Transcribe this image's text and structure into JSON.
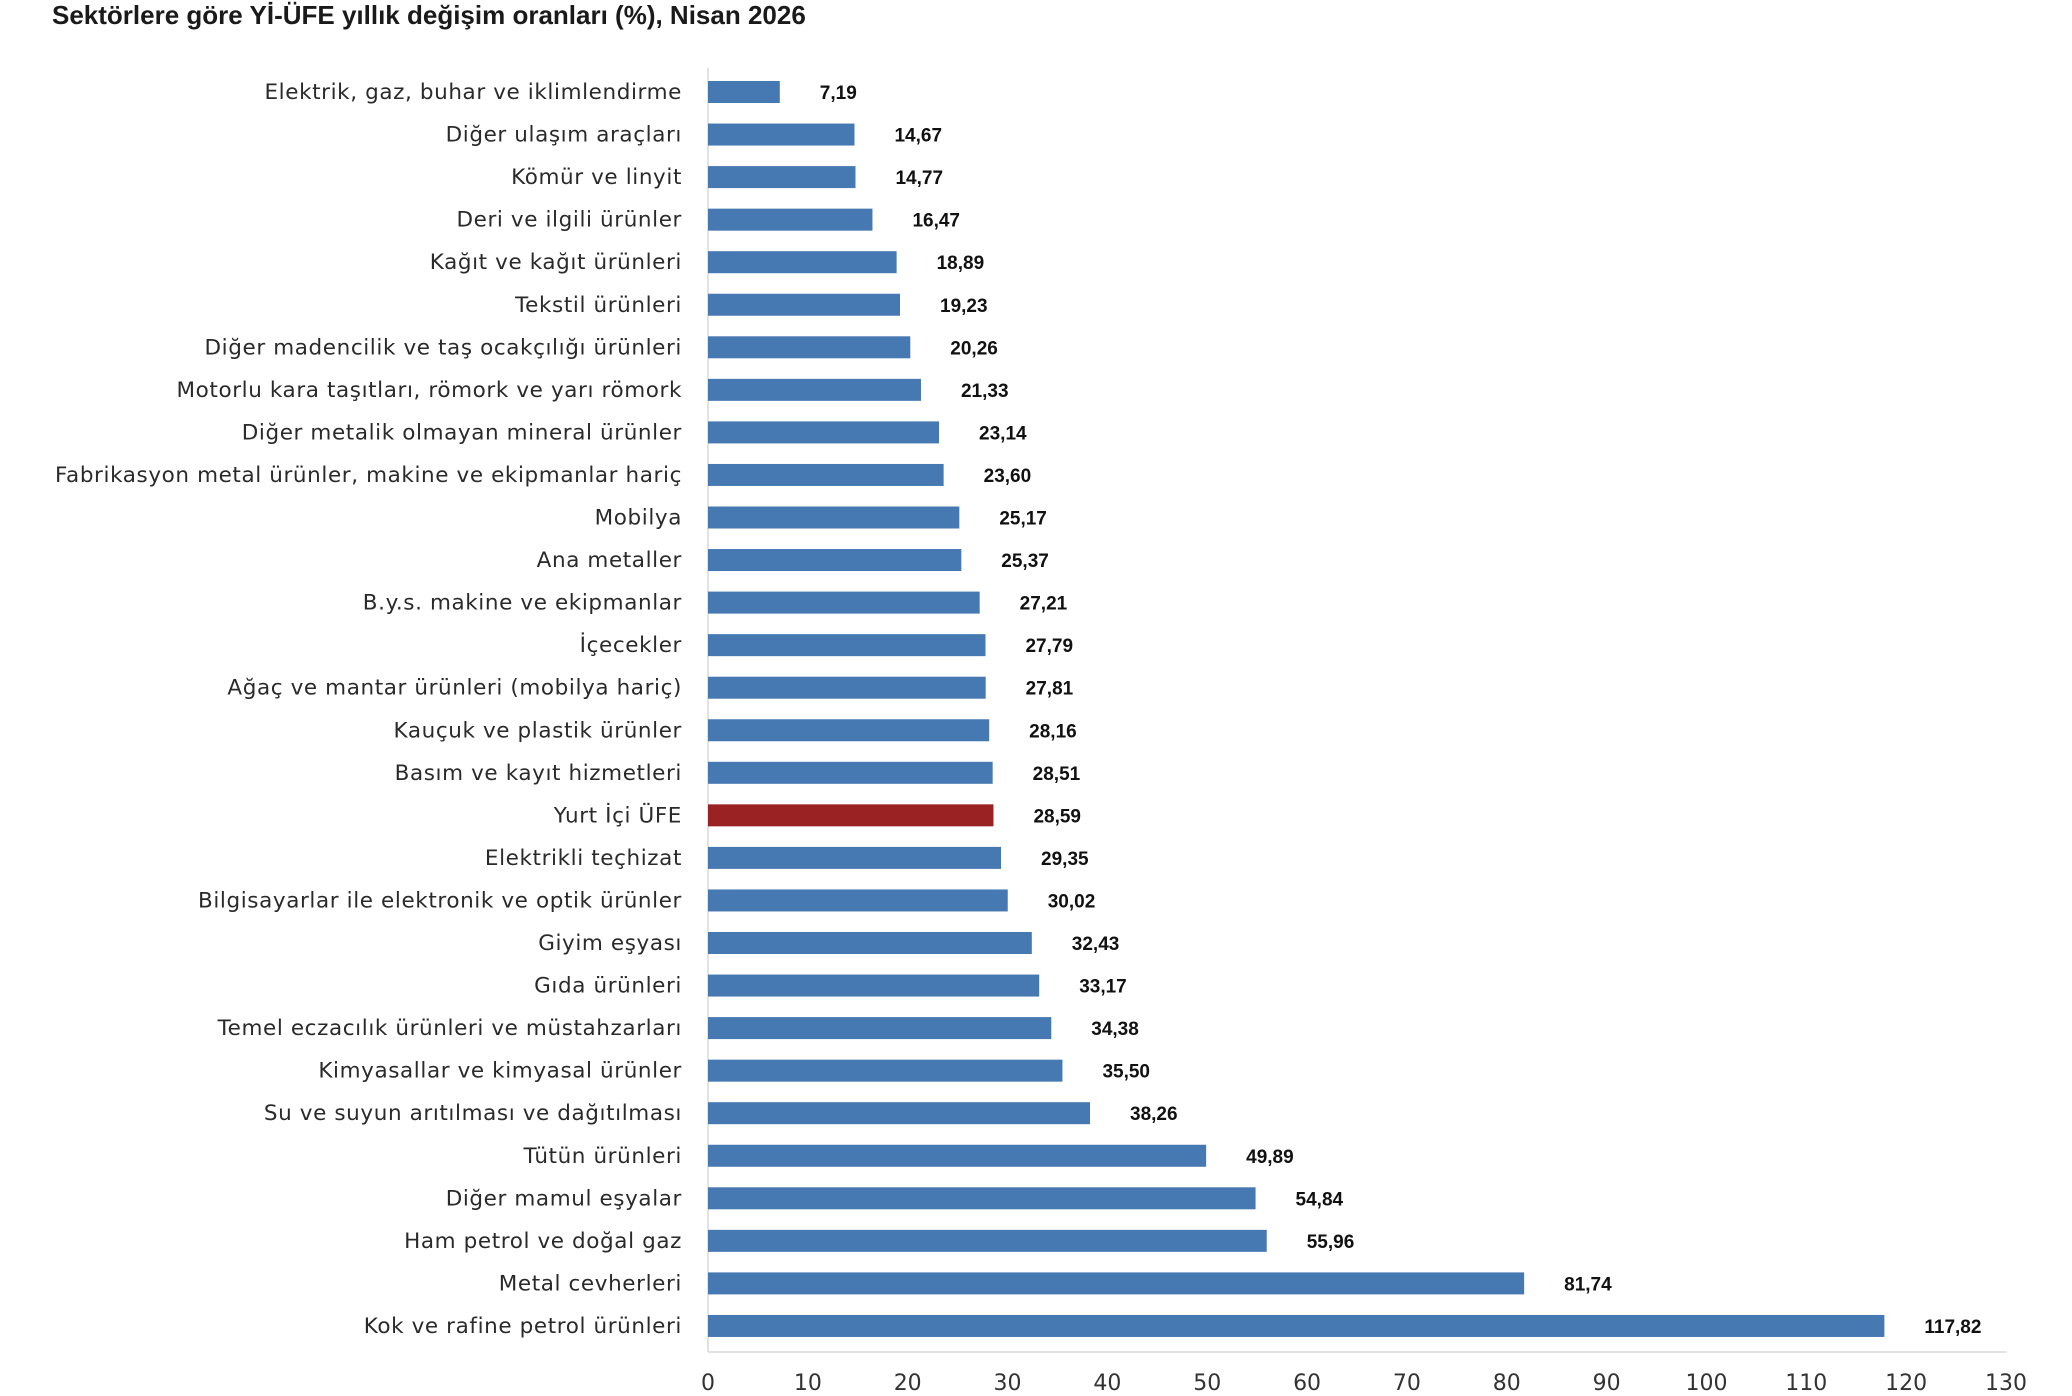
{
  "chart_data": {
    "type": "bar",
    "orientation": "horizontal",
    "title": "Sektörlere göre Yİ-ÜFE yıllık değişim oranları (%), Nisan 2026",
    "categories": [
      "Elektrik, gaz, buhar ve iklimlendirme",
      "Diğer ulaşım araçları",
      "Kömür ve linyit",
      "Deri ve ilgili ürünler",
      "Kağıt ve kağıt ürünleri",
      "Tekstil ürünleri",
      "Diğer madencilik ve taş ocakçılığı ürünleri",
      "Motorlu kara taşıtları, römork ve yarı römork",
      "Diğer metalik olmayan mineral ürünler",
      "Fabrikasyon metal ürünler, makine ve ekipmanlar hariç",
      "Mobilya",
      "Ana metaller",
      "B.y.s. makine ve ekipmanlar",
      "İçecekler",
      "Ağaç ve mantar ürünleri (mobilya hariç)",
      "Kauçuk ve plastik ürünler",
      "Basım ve kayıt hizmetleri",
      "Yurt İçi ÜFE",
      "Elektrikli teçhizat",
      "Bilgisayarlar ile elektronik ve optik ürünler",
      "Giyim eşyası",
      "Gıda ürünleri",
      "Temel eczacılık ürünleri ve müstahzarları",
      "Kimyasallar ve kimyasal ürünler",
      "Su ve suyun arıtılması ve dağıtılması",
      "Tütün ürünleri",
      "Diğer mamul eşyalar",
      "Ham petrol ve doğal gaz",
      "Metal cevherleri",
      "Kok ve rafine petrol ürünleri"
    ],
    "values": [
      7.19,
      14.67,
      14.77,
      16.47,
      18.89,
      19.23,
      20.26,
      21.33,
      23.14,
      23.6,
      25.17,
      25.37,
      27.21,
      27.79,
      27.81,
      28.16,
      28.51,
      28.59,
      29.35,
      30.02,
      32.43,
      33.17,
      34.38,
      35.5,
      38.26,
      49.89,
      54.84,
      55.96,
      81.74,
      117.82
    ],
    "value_labels": [
      "7,19",
      "14,67",
      "14,77",
      "16,47",
      "18,89",
      "19,23",
      "20,26",
      "21,33",
      "23,14",
      "23,60",
      "25,17",
      "25,37",
      "27,21",
      "27,79",
      "27,81",
      "28,16",
      "28,51",
      "28,59",
      "29,35",
      "30,02",
      "32,43",
      "33,17",
      "34,38",
      "35,50",
      "38,26",
      "49,89",
      "54,84",
      "55,96",
      "81,74",
      "117,82"
    ],
    "highlight_category": "Yurt İçi ÜFE",
    "bar_color": "#4678b2",
    "highlight_color": "#9b2222",
    "xlim": [
      0,
      130
    ],
    "x_ticks": [
      0,
      10,
      20,
      30,
      40,
      50,
      60,
      70,
      80,
      90,
      100,
      110,
      120,
      130
    ],
    "grid": false,
    "legend": "none"
  }
}
